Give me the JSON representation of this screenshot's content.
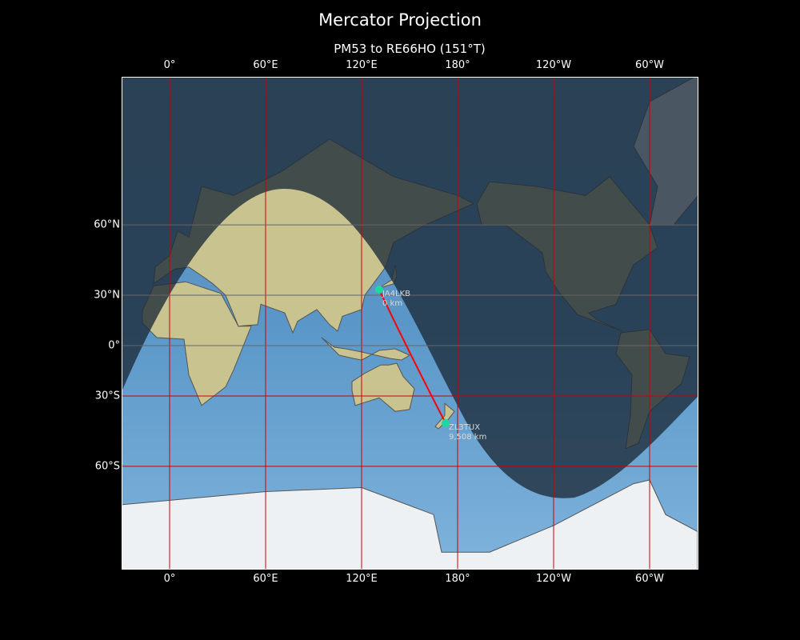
{
  "figure": {
    "title": "Mercator Projection",
    "subtitle": "PM53 to RE66HO (151°T)"
  },
  "map": {
    "projection": "Mercator",
    "lon_range": [
      -30,
      330
    ],
    "lat_range": [
      -80,
      86
    ],
    "x_ticks": [
      {
        "lon": 0,
        "label": "0°"
      },
      {
        "lon": 60,
        "label": "60°E"
      },
      {
        "lon": 120,
        "label": "120°E"
      },
      {
        "lon": 180,
        "label": "180°"
      },
      {
        "lon": 240,
        "label": "120°W"
      },
      {
        "lon": 300,
        "label": "60°W"
      }
    ],
    "y_ticks": [
      {
        "lat": 60,
        "label": "60°N"
      },
      {
        "lat": 30,
        "label": "30°N"
      },
      {
        "lat": 0,
        "label": "0°"
      },
      {
        "lat": -30,
        "label": "30°S"
      },
      {
        "lat": -60,
        "label": "60°S"
      }
    ],
    "grid": true,
    "night_shading": true,
    "colors": {
      "grid": "#cc0000",
      "path": "#ff0000",
      "station": "#1fd8a0",
      "night": "#1c2a38",
      "label": "#d8d8d8"
    },
    "stations": [
      {
        "call": "JA4LKB",
        "distance": "0 km",
        "lon": 131,
        "lat": 33
      },
      {
        "call": "ZL3TUX",
        "distance": "9,508 km",
        "lon": 172.5,
        "lat": -43.5
      }
    ]
  }
}
